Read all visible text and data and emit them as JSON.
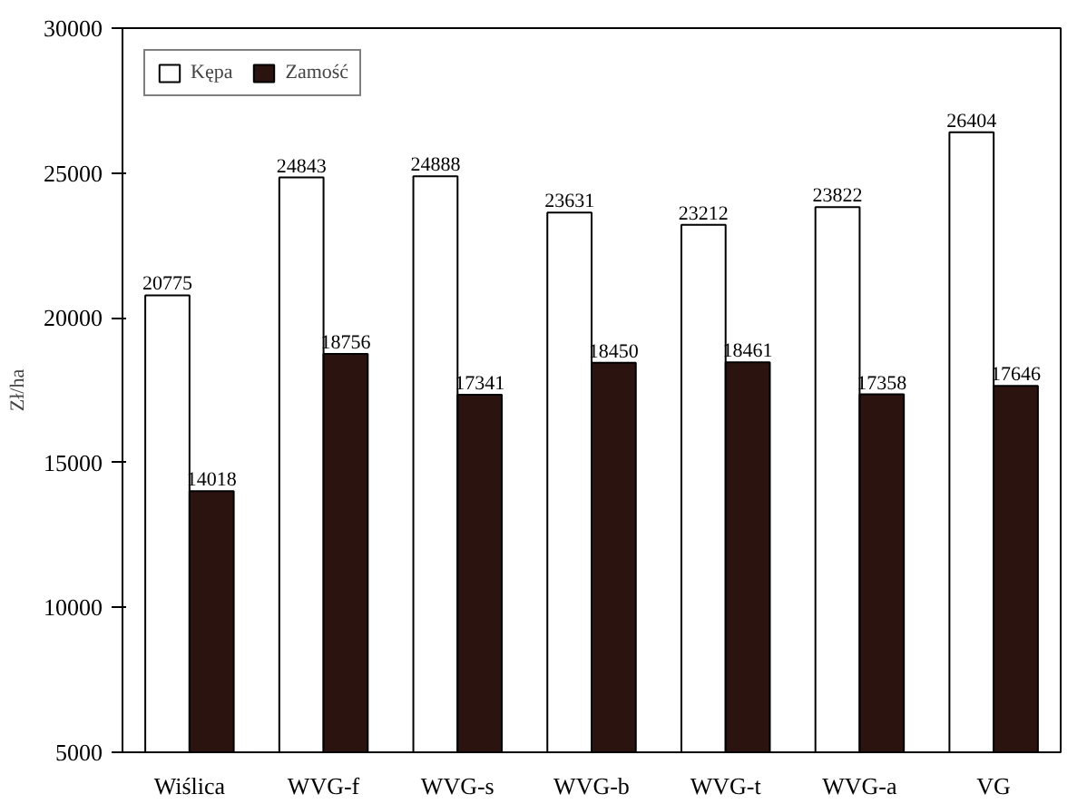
{
  "chart_data": {
    "type": "bar",
    "ylabel": "Zł/ha",
    "categories": [
      "Wiślica",
      "WVG-f",
      "WVG-s",
      "WVG-b",
      "WVG-t",
      "WVG-a",
      "VG"
    ],
    "series": [
      {
        "name": "Kępa",
        "color": "#ffffff",
        "values": [
          20775,
          24843,
          24888,
          23631,
          23212,
          23822,
          26404
        ]
      },
      {
        "name": "Zamość",
        "color": "#2b1410",
        "values": [
          14018,
          18756,
          17341,
          18450,
          18461,
          17358,
          17646
        ]
      }
    ],
    "ylim": [
      5000,
      30000
    ],
    "yticks": [
      5000,
      10000,
      15000,
      20000,
      25000,
      30000
    ],
    "grid": false,
    "legend": "top left",
    "data_labels": true
  }
}
